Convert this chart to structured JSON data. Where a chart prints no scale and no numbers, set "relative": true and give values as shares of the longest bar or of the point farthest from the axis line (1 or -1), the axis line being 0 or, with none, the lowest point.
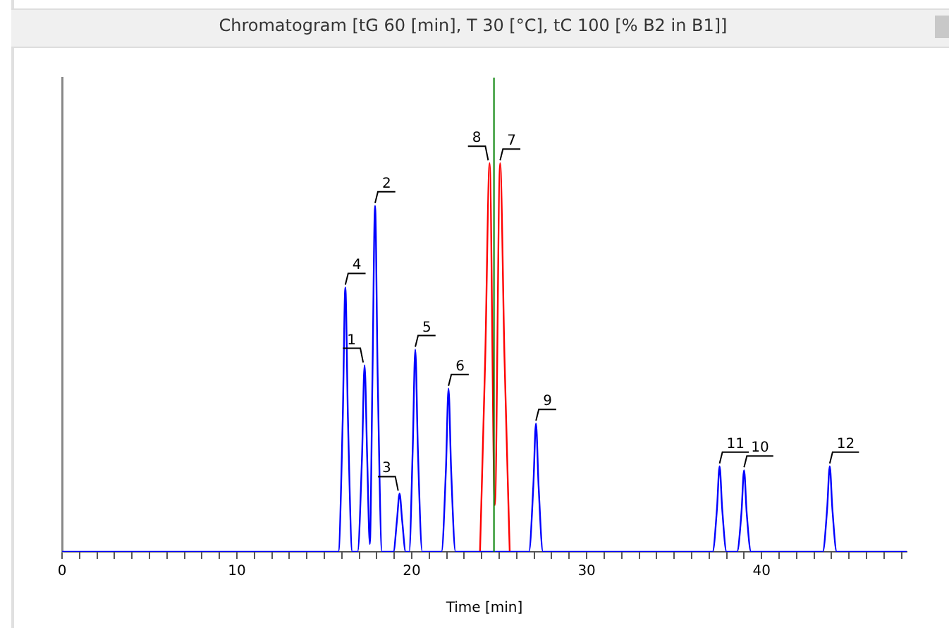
{
  "chart_data": {
    "type": "line",
    "title": "Chromatogram [tG 60 [min], T 30 [°C], tC 100 [% B2 in B1]]",
    "xlabel": "Time [min]",
    "relative": true,
    "xlim": [
      0,
      48.3
    ],
    "xticks": [
      0,
      {
        "value": 1,
        "label": null
      },
      {
        "value": 2,
        "label": null
      },
      {
        "value": 3,
        "label": null
      },
      {
        "value": 4,
        "label": null
      },
      {
        "value": 5,
        "label": null
      },
      {
        "value": 6,
        "label": null
      },
      {
        "value": 7,
        "label": null
      },
      {
        "value": 8,
        "label": null
      },
      {
        "value": 9,
        "label": null
      },
      10,
      {
        "value": 11,
        "label": null
      },
      {
        "value": 12,
        "label": null
      },
      {
        "value": 13,
        "label": null
      },
      {
        "value": 14,
        "label": null
      },
      {
        "value": 15,
        "label": null
      },
      {
        "value": 16,
        "label": null
      },
      {
        "value": 17,
        "label": null
      },
      {
        "value": 18,
        "label": null
      },
      {
        "value": 19,
        "label": null
      },
      20,
      {
        "value": 21,
        "label": null
      },
      {
        "value": 22,
        "label": null
      },
      {
        "value": 23,
        "label": null
      },
      {
        "value": 24,
        "label": null
      },
      {
        "value": 25,
        "label": null
      },
      {
        "value": 26,
        "label": null
      },
      {
        "value": 27,
        "label": null
      },
      {
        "value": 28,
        "label": null
      },
      {
        "value": 29,
        "label": null
      },
      30,
      {
        "value": 31,
        "label": null
      },
      {
        "value": 32,
        "label": null
      },
      {
        "value": 33,
        "label": null
      },
      {
        "value": 34,
        "label": null
      },
      {
        "value": 35,
        "label": null
      },
      {
        "value": 36,
        "label": null
      },
      {
        "value": 37,
        "label": null
      },
      {
        "value": 38,
        "label": null
      },
      {
        "value": 39,
        "label": null
      },
      40,
      {
        "value": 41,
        "label": null
      },
      {
        "value": 42,
        "label": null
      },
      {
        "value": 43,
        "label": null
      },
      {
        "value": 44,
        "label": null
      },
      {
        "value": 45,
        "label": null
      },
      {
        "value": 46,
        "label": null
      },
      {
        "value": 47,
        "label": null
      },
      {
        "value": 48,
        "label": null
      }
    ],
    "grid": false,
    "legend": false,
    "marker": "none",
    "line_style": "solid",
    "series": [
      {
        "color": "#0000ff",
        "x": [
          0,
          15.8,
          16.05,
          16.2,
          16.35,
          16.6,
          16.9,
          17.15,
          17.3,
          17.45,
          17.6,
          17.75,
          17.9,
          18.05,
          18.3,
          18.95,
          19.15,
          19.3,
          19.45,
          19.65,
          19.85,
          20.05,
          20.2,
          20.35,
          20.6,
          21.7,
          21.95,
          22.1,
          22.25,
          22.5,
          26.7,
          26.95,
          27.1,
          27.25,
          27.5,
          37.2,
          37.45,
          37.6,
          37.75,
          38.0,
          38.6,
          38.85,
          39.0,
          39.15,
          39.4,
          43.5,
          43.75,
          43.9,
          44.05,
          44.3,
          48.3
        ],
        "values": [
          0,
          0,
          0.34,
          0.68,
          0.34,
          0,
          0,
          0.24,
          0.48,
          0.24,
          0.02,
          0.45,
          0.89,
          0.45,
          0,
          0,
          0.08,
          0.15,
          0.08,
          0,
          0,
          0.26,
          0.52,
          0.26,
          0,
          0,
          0.21,
          0.42,
          0.21,
          0,
          0,
          0.17,
          0.33,
          0.17,
          0,
          0,
          0.11,
          0.22,
          0.11,
          0,
          0,
          0.1,
          0.21,
          0.1,
          0,
          0,
          0.11,
          0.22,
          0.11,
          0,
          0
        ]
      },
      {
        "color": "#ff0000",
        "x": [
          23.9,
          24.2,
          24.45,
          24.75,
          25.05,
          25.3,
          25.6
        ],
        "values": [
          0,
          0.5,
          1,
          0.12,
          1,
          0.5,
          0
        ]
      }
    ],
    "ref_lines": [
      {
        "axis": "x",
        "value": 24.7,
        "color": "#008000"
      }
    ],
    "annotations": [
      {
        "text": "4",
        "x": 16.2,
        "y": 0.68
      },
      {
        "text": "1",
        "x": 17.3,
        "y": 0.48
      },
      {
        "text": "2",
        "x": 17.9,
        "y": 0.89
      },
      {
        "text": "3",
        "x": 19.3,
        "y": 0.15
      },
      {
        "text": "5",
        "x": 20.2,
        "y": 0.52
      },
      {
        "text": "6",
        "x": 22.1,
        "y": 0.42
      },
      {
        "text": "8",
        "x": 24.45,
        "y": 1
      },
      {
        "text": "7",
        "x": 25.05,
        "y": 1
      },
      {
        "text": "9",
        "x": 27.1,
        "y": 0.33
      },
      {
        "text": "11",
        "x": 37.6,
        "y": 0.22
      },
      {
        "text": "10",
        "x": 39.0,
        "y": 0.21
      },
      {
        "text": "12",
        "x": 43.9,
        "y": 0.22
      }
    ]
  }
}
